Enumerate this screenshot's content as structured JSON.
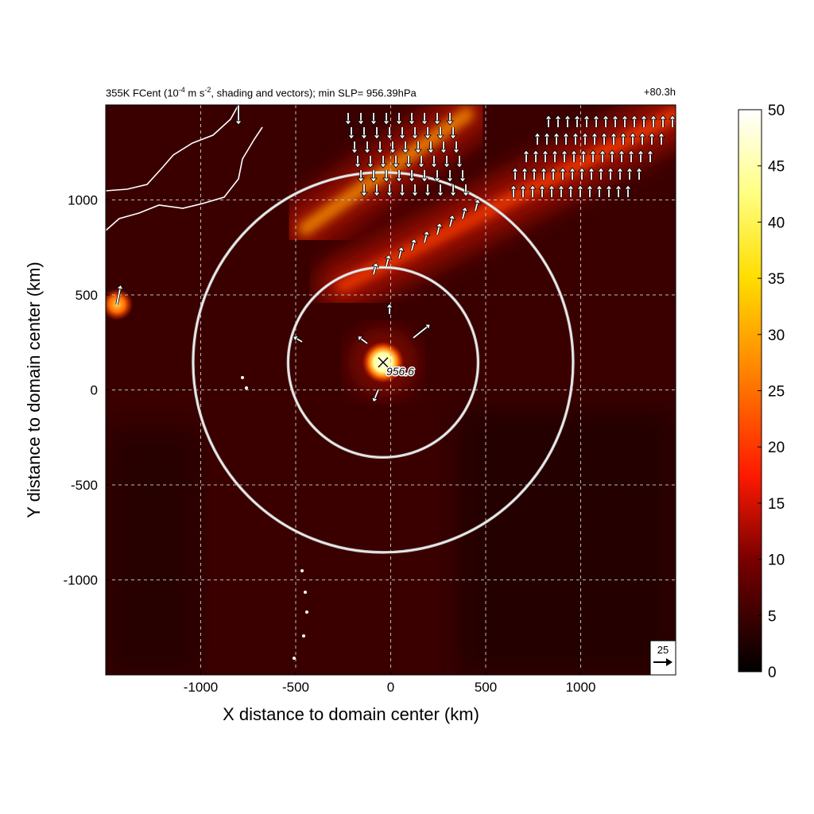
{
  "title": {
    "left_prefix": "355K FCent (10",
    "left_exponent": "-4",
    "left_units_mid": " m s",
    "left_units_exponent": "-2",
    "left_suffix": ", shading and vectors); min SLP= 956.39hPa",
    "right": "+80.3h"
  },
  "colors": {
    "background_field": "#3a0000",
    "ring": "#c8c8c8",
    "coastline": "#ffffff",
    "vector": "#ffffff",
    "grid": "#bbbbbb"
  },
  "chart_data": {
    "type": "heatmap",
    "xlabel": "X distance to domain center (km)",
    "ylabel": "Y distance to domain center (km)",
    "xlim": [
      -1500,
      1500
    ],
    "ylim": [
      -1500,
      1500
    ],
    "x_ticks": [
      -1000,
      -500,
      0,
      500,
      1000
    ],
    "x_tick_labels": [
      "-1000",
      "-500",
      "0",
      "500",
      "1000"
    ],
    "y_ticks": [
      -1000,
      -500,
      0,
      500,
      1000
    ],
    "y_tick_labels": [
      "-1000",
      "-500",
      "0",
      "500",
      "1000"
    ],
    "grid": true,
    "colorbar": {
      "min": 0,
      "max": 50,
      "ticks": [
        0,
        5,
        10,
        15,
        20,
        25,
        30,
        35,
        40,
        45,
        50
      ],
      "tick_labels": [
        "0",
        "5",
        "10",
        "15",
        "20",
        "25",
        "30",
        "35",
        "40",
        "45",
        "50"
      ],
      "colormap": "hot"
    },
    "storm_center": {
      "x": -40,
      "y": 145,
      "label": "956.6"
    },
    "rings": [
      {
        "center_x": -40,
        "center_y": 145,
        "radius_km": 500
      },
      {
        "center_x": -40,
        "center_y": 145,
        "radius_km": 1000
      }
    ],
    "reference_vector": {
      "label": "25",
      "magnitude": 25
    },
    "features": [
      {
        "name": "northern band",
        "from": [
          -450,
          850
        ],
        "to": [
          400,
          1450
        ],
        "intensity": 30
      },
      {
        "name": "northeast band",
        "from": [
          -250,
          550
        ],
        "to": [
          1500,
          1450
        ],
        "intensity": 18
      },
      {
        "name": "eyewall",
        "x": -40,
        "y": 145,
        "intensity": 50
      },
      {
        "name": "western spot",
        "x": -1440,
        "y": 450,
        "intensity": 28
      }
    ]
  }
}
